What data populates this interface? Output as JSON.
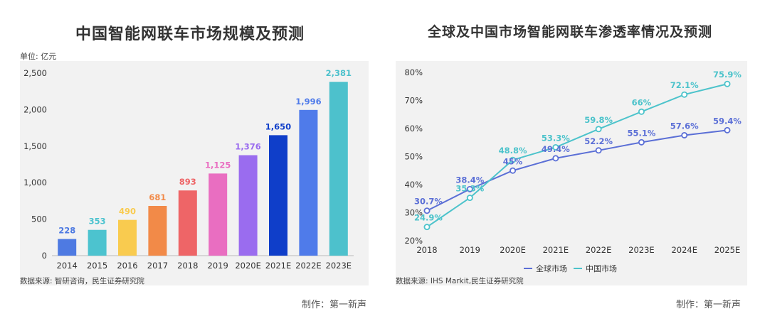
{
  "chart_data": [
    {
      "type": "bar",
      "title": "中国智能网联车市场规模及预测",
      "unit_label": "单位: 亿元",
      "categories": [
        "2014",
        "2015",
        "2016",
        "2017",
        "2018",
        "2019",
        "2020E",
        "2021E",
        "2022E",
        "2023E"
      ],
      "values": [
        228,
        353,
        490,
        681,
        893,
        1125,
        1376,
        1650,
        1996,
        2381
      ],
      "value_labels": [
        "228",
        "353",
        "490",
        "681",
        "893",
        "1,125",
        "1,376",
        "1,650",
        "1,996",
        "2,381"
      ],
      "bar_colors": [
        "#4e7ae2",
        "#4cc3cf",
        "#f9cb4f",
        "#f28a48",
        "#ee6567",
        "#e96ec1",
        "#9a6cef",
        "#0f3ec9",
        "#4f7bea",
        "#4dc1cc"
      ],
      "ylim": [
        0,
        2500
      ],
      "yticks": [
        0,
        500,
        1000,
        1500,
        2000,
        2500
      ],
      "ytick_labels": [
        "0",
        "500",
        "1,000",
        "1,500",
        "2,000",
        "2,500"
      ],
      "source": "数据来源: 智研咨询，民生证券研究院",
      "credit": "制作：第一新声"
    },
    {
      "type": "line",
      "title": "全球及中国市场智能网联车渗透率情况及预测",
      "x": [
        "2018",
        "2019",
        "2020E",
        "2021E",
        "2022E",
        "2023E",
        "2024E",
        "2025E"
      ],
      "series": [
        {
          "name": "全球市场",
          "color": "#5b6fd6",
          "values": [
            30.7,
            38.4,
            45,
            49.4,
            52.2,
            55.1,
            57.6,
            59.4
          ],
          "labels": [
            "30.7%",
            "38.4%",
            "45%",
            "49.4%",
            "52.2%",
            "55.1%",
            "57.6%",
            "59.4%"
          ]
        },
        {
          "name": "中国市场",
          "color": "#4cc3cb",
          "values": [
            24.9,
            35.3,
            48.8,
            53.3,
            59.8,
            66,
            72.1,
            75.9
          ],
          "labels": [
            "24.9%",
            "35.3%",
            "48.8%",
            "53.3%",
            "59.8%",
            "66%",
            "72.1%",
            "75.9%"
          ]
        }
      ],
      "ylim": [
        20,
        80
      ],
      "yticks": [
        20,
        30,
        40,
        50,
        60,
        70,
        80
      ],
      "ytick_labels": [
        "20%",
        "30%",
        "40%",
        "50%",
        "60%",
        "70%",
        "80%"
      ],
      "legend": "bottom-center",
      "source": "数据来源: IHS Markit,民生证券研究院",
      "credit": "制作：第一新声"
    }
  ]
}
